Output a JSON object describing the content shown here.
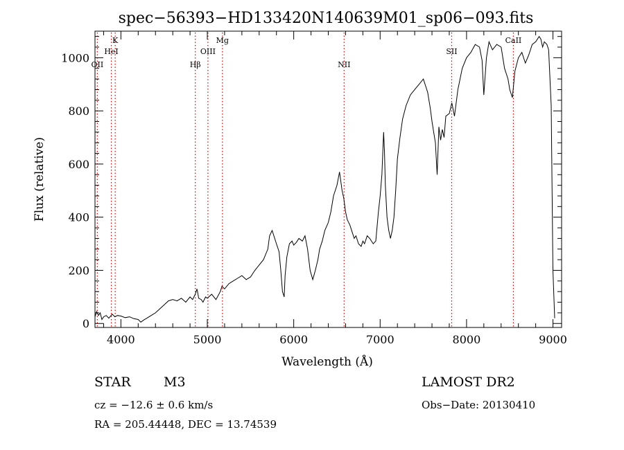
{
  "chart_data": {
    "type": "line",
    "title": "spec−56393−HD133420N140639M01_sp06−093.fits",
    "xlabel": "Wavelength (Å)",
    "ylabel": "Flux (relative)",
    "xlim": [
      3700,
      9100
    ],
    "ylim": [
      -15,
      1100
    ],
    "x_ticks": [
      4000,
      5000,
      6000,
      7000,
      8000,
      9000
    ],
    "y_ticks": [
      0,
      200,
      400,
      600,
      800,
      1000
    ],
    "grid": false,
    "line_color": "#000000",
    "marker_color": "#cc0000",
    "lines": [
      {
        "label": "OII",
        "wavelength": 3727,
        "label_row": 3
      },
      {
        "label": "K",
        "wavelength": 3934,
        "label_row": 1
      },
      {
        "label": "HeI",
        "wavelength": 3889,
        "label_row": 2
      },
      {
        "label": "Hβ",
        "wavelength": 4861,
        "label_row": 3
      },
      {
        "label": "OIII",
        "wavelength": 5007,
        "label_row": 2
      },
      {
        "label": "Mg",
        "wavelength": 5175,
        "label_row": 1
      },
      {
        "label": "NII",
        "wavelength": 6583,
        "label_row": 3
      },
      {
        "label": "SII",
        "wavelength": 7828,
        "label_row": 2
      },
      {
        "label": "CaII",
        "wavelength": 8542,
        "label_row": 1
      }
    ],
    "series": [
      {
        "x": [
          3700,
          3720,
          3740,
          3760,
          3780,
          3800,
          3830,
          3860,
          3900,
          3930,
          3960,
          4000,
          4050,
          4100,
          4150,
          4200,
          4230,
          4260,
          4300,
          4350,
          4400,
          4450,
          4500,
          4550,
          4600,
          4650,
          4700,
          4750,
          4800,
          4830,
          4860,
          4880,
          4900,
          4930,
          4950,
          4980,
          5000,
          5050,
          5100,
          5150,
          5170,
          5200,
          5250,
          5300,
          5350,
          5400,
          5450,
          5500,
          5550,
          5600,
          5650,
          5700,
          5720,
          5750,
          5780,
          5800,
          5830,
          5850,
          5870,
          5890,
          5900,
          5920,
          5950,
          5980,
          6000,
          6030,
          6060,
          6100,
          6130,
          6160,
          6190,
          6220,
          6250,
          6280,
          6300,
          6330,
          6360,
          6400,
          6430,
          6460,
          6500,
          6530,
          6560,
          6580,
          6600,
          6620,
          6650,
          6680,
          6700,
          6720,
          6750,
          6780,
          6800,
          6820,
          6850,
          6880,
          6920,
          6950,
          6980,
          7000,
          7020,
          7040,
          7050,
          7060,
          7080,
          7100,
          7120,
          7140,
          7160,
          7180,
          7200,
          7230,
          7260,
          7300,
          7350,
          7400,
          7450,
          7500,
          7550,
          7580,
          7600,
          7620,
          7640,
          7660,
          7680,
          7700,
          7720,
          7740,
          7760,
          7800,
          7830,
          7860,
          7900,
          7950,
          8000,
          8050,
          8100,
          8150,
          8180,
          8200,
          8230,
          8260,
          8300,
          8350,
          8400,
          8440,
          8480,
          8500,
          8530,
          8560,
          8600,
          8640,
          8680,
          8720,
          8760,
          8800,
          8840,
          8860,
          8880,
          8900,
          8930,
          8950,
          8980,
          9000,
          9020
        ],
        "y": [
          25,
          45,
          30,
          40,
          15,
          25,
          30,
          20,
          35,
          25,
          30,
          28,
          22,
          25,
          18,
          15,
          5,
          12,
          20,
          30,
          40,
          55,
          70,
          85,
          90,
          85,
          95,
          80,
          100,
          90,
          110,
          130,
          95,
          90,
          80,
          100,
          95,
          110,
          90,
          120,
          140,
          130,
          150,
          160,
          170,
          180,
          165,
          175,
          200,
          220,
          240,
          280,
          330,
          350,
          320,
          300,
          270,
          200,
          120,
          100,
          180,
          250,
          300,
          310,
          295,
          305,
          320,
          310,
          330,
          280,
          200,
          165,
          200,
          240,
          280,
          310,
          350,
          380,
          420,
          480,
          520,
          570,
          500,
          470,
          420,
          390,
          370,
          340,
          320,
          330,
          300,
          290,
          310,
          300,
          330,
          320,
          300,
          310,
          420,
          480,
          560,
          720,
          650,
          520,
          400,
          350,
          320,
          350,
          400,
          500,
          620,
          700,
          770,
          820,
          860,
          880,
          900,
          920,
          870,
          810,
          760,
          720,
          680,
          560,
          740,
          690,
          730,
          700,
          780,
          790,
          830,
          780,
          880,
          960,
          1000,
          1020,
          1050,
          1040,
          990,
          860,
          1000,
          1060,
          1030,
          1050,
          1040,
          960,
          920,
          880,
          850,
          950,
          1000,
          1020,
          980,
          1010,
          1050,
          1060,
          1080,
          1070,
          1040,
          1060,
          1050,
          1030,
          820,
          200,
          20
        ]
      }
    ]
  },
  "info": {
    "object_class": "STAR",
    "subclass": "M3",
    "cz": "cz = −12.6 ± 0.6 km/s",
    "coords": "RA = 205.44448, DEC =  13.74539",
    "survey": "LAMOST DR2",
    "obs_date": "Obs−Date: 20130410"
  }
}
